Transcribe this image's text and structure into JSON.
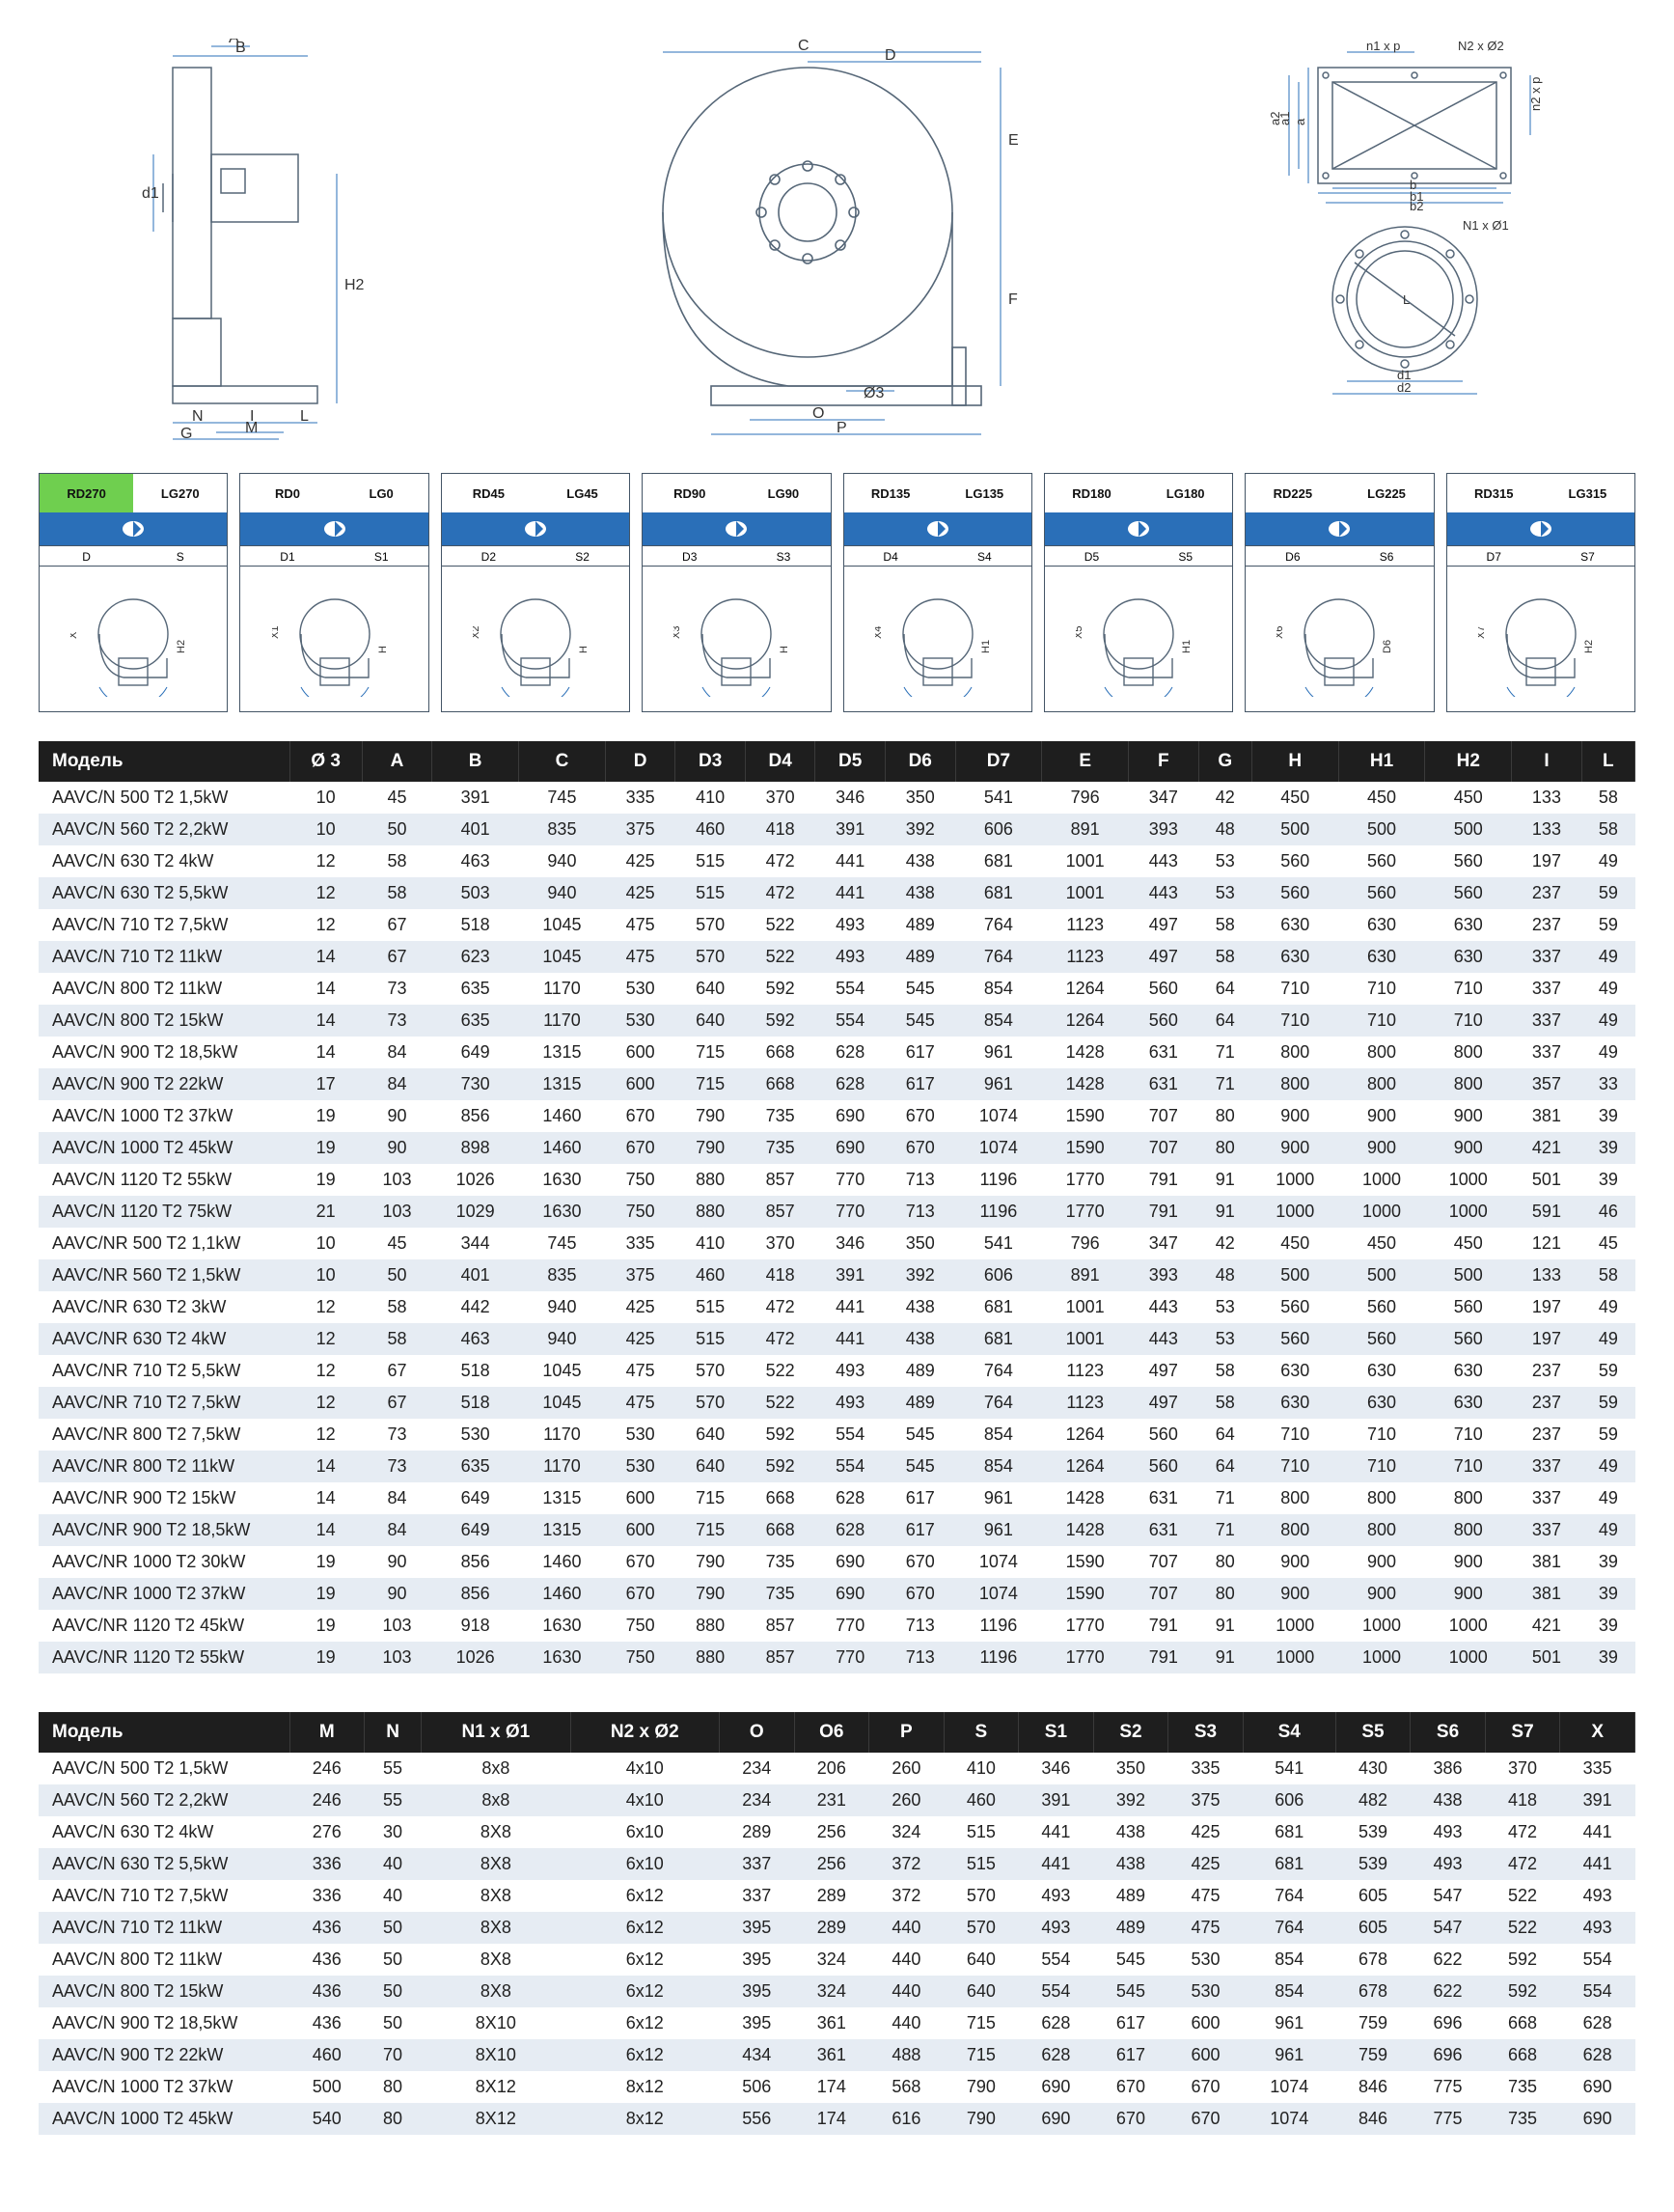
{
  "images": {
    "side_view_labels": [
      "A",
      "B",
      "d1",
      "H2",
      "N",
      "I",
      "L",
      "G",
      "M"
    ],
    "front_view_labels": [
      "C",
      "D",
      "E",
      "F",
      "O",
      "Ø3",
      "P"
    ],
    "flange_rect_labels": [
      "n1 x p",
      "N2 x Ø2",
      "a1",
      "a2",
      "a",
      "b",
      "b1",
      "b2",
      "n2 x p"
    ],
    "flange_round_labels": [
      "N1 x Ø1",
      "L",
      "d1",
      "d2"
    ]
  },
  "orientations": [
    {
      "rd": "RD270",
      "lg": "LG270",
      "dims": [
        "D",
        "S",
        "X",
        "H2"
      ],
      "active": true
    },
    {
      "rd": "RD0",
      "lg": "LG0",
      "dims": [
        "D1",
        "S1",
        "X1",
        "H"
      ]
    },
    {
      "rd": "RD45",
      "lg": "LG45",
      "dims": [
        "D2",
        "S2",
        "X2",
        "H"
      ]
    },
    {
      "rd": "RD90",
      "lg": "LG90",
      "dims": [
        "D3",
        "S3",
        "X3",
        "H"
      ]
    },
    {
      "rd": "RD135",
      "lg": "LG135",
      "dims": [
        "D4",
        "S4",
        "X4",
        "H1"
      ]
    },
    {
      "rd": "RD180",
      "lg": "LG180",
      "dims": [
        "D5",
        "S5",
        "X5",
        "H1"
      ]
    },
    {
      "rd": "RD225",
      "lg": "LG225",
      "dims": [
        "D6",
        "S6",
        "X6",
        "D6",
        "H1"
      ]
    },
    {
      "rd": "RD315",
      "lg": "LG315",
      "dims": [
        "D7",
        "S7",
        "X7",
        "H2"
      ]
    }
  ],
  "table1": {
    "header_label": "Модель",
    "columns": [
      "Ø 3",
      "A",
      "B",
      "C",
      "D",
      "D3",
      "D4",
      "D5",
      "D6",
      "D7",
      "E",
      "F",
      "G",
      "H",
      "H1",
      "H2",
      "I",
      "L"
    ],
    "rows": [
      [
        "AAVC/N 500 T2 1,5kW",
        10,
        45,
        391,
        745,
        335,
        410,
        370,
        346,
        350,
        541,
        796,
        347,
        42,
        450,
        450,
        450,
        133,
        58
      ],
      [
        "AAVC/N 560 T2 2,2kW",
        10,
        50,
        401,
        835,
        375,
        460,
        418,
        391,
        392,
        606,
        891,
        393,
        48,
        500,
        500,
        500,
        133,
        58
      ],
      [
        "AAVC/N 630 T2 4kW",
        12,
        58,
        463,
        940,
        425,
        515,
        472,
        441,
        438,
        681,
        1001,
        443,
        53,
        560,
        560,
        560,
        197,
        49
      ],
      [
        "AAVC/N 630 T2 5,5kW",
        12,
        58,
        503,
        940,
        425,
        515,
        472,
        441,
        438,
        681,
        1001,
        443,
        53,
        560,
        560,
        560,
        237,
        59
      ],
      [
        "AAVC/N 710 T2 7,5kW",
        12,
        67,
        518,
        1045,
        475,
        570,
        522,
        493,
        489,
        764,
        1123,
        497,
        58,
        630,
        630,
        630,
        237,
        59
      ],
      [
        "AAVC/N 710 T2 11kW",
        14,
        67,
        623,
        1045,
        475,
        570,
        522,
        493,
        489,
        764,
        1123,
        497,
        58,
        630,
        630,
        630,
        337,
        49
      ],
      [
        "AAVC/N 800 T2 11kW",
        14,
        73,
        635,
        1170,
        530,
        640,
        592,
        554,
        545,
        854,
        1264,
        560,
        64,
        710,
        710,
        710,
        337,
        49
      ],
      [
        "AAVC/N 800 T2 15kW",
        14,
        73,
        635,
        1170,
        530,
        640,
        592,
        554,
        545,
        854,
        1264,
        560,
        64,
        710,
        710,
        710,
        337,
        49
      ],
      [
        "AAVC/N 900 T2 18,5kW",
        14,
        84,
        649,
        1315,
        600,
        715,
        668,
        628,
        617,
        961,
        1428,
        631,
        71,
        800,
        800,
        800,
        337,
        49
      ],
      [
        "AAVC/N 900 T2 22kW",
        17,
        84,
        730,
        1315,
        600,
        715,
        668,
        628,
        617,
        961,
        1428,
        631,
        71,
        800,
        800,
        800,
        357,
        33
      ],
      [
        "AAVC/N 1000 T2 37kW",
        19,
        90,
        856,
        1460,
        670,
        790,
        735,
        690,
        670,
        1074,
        1590,
        707,
        80,
        900,
        900,
        900,
        381,
        39
      ],
      [
        "AAVC/N 1000 T2 45kW",
        19,
        90,
        898,
        1460,
        670,
        790,
        735,
        690,
        670,
        1074,
        1590,
        707,
        80,
        900,
        900,
        900,
        421,
        39
      ],
      [
        "AAVC/N 1120 T2 55kW",
        19,
        103,
        1026,
        1630,
        750,
        880,
        857,
        770,
        713,
        1196,
        1770,
        791,
        91,
        1000,
        1000,
        1000,
        501,
        39
      ],
      [
        "AAVC/N 1120 T2 75kW",
        21,
        103,
        1029,
        1630,
        750,
        880,
        857,
        770,
        713,
        1196,
        1770,
        791,
        91,
        1000,
        1000,
        1000,
        591,
        46
      ],
      [
        "AAVC/NR 500 T2 1,1kW",
        10,
        45,
        344,
        745,
        335,
        410,
        370,
        346,
        350,
        541,
        796,
        347,
        42,
        450,
        450,
        450,
        121,
        45
      ],
      [
        "AAVC/NR 560 T2 1,5kW",
        10,
        50,
        401,
        835,
        375,
        460,
        418,
        391,
        392,
        606,
        891,
        393,
        48,
        500,
        500,
        500,
        133,
        58
      ],
      [
        "AAVC/NR 630 T2 3kW",
        12,
        58,
        442,
        940,
        425,
        515,
        472,
        441,
        438,
        681,
        1001,
        443,
        53,
        560,
        560,
        560,
        197,
        49
      ],
      [
        "AAVC/NR 630 T2 4kW",
        12,
        58,
        463,
        940,
        425,
        515,
        472,
        441,
        438,
        681,
        1001,
        443,
        53,
        560,
        560,
        560,
        197,
        49
      ],
      [
        "AAVC/NR 710 T2 5,5kW",
        12,
        67,
        518,
        1045,
        475,
        570,
        522,
        493,
        489,
        764,
        1123,
        497,
        58,
        630,
        630,
        630,
        237,
        59
      ],
      [
        "AAVC/NR 710 T2 7,5kW",
        12,
        67,
        518,
        1045,
        475,
        570,
        522,
        493,
        489,
        764,
        1123,
        497,
        58,
        630,
        630,
        630,
        237,
        59
      ],
      [
        "AAVC/NR 800 T2 7,5kW",
        12,
        73,
        530,
        1170,
        530,
        640,
        592,
        554,
        545,
        854,
        1264,
        560,
        64,
        710,
        710,
        710,
        237,
        59
      ],
      [
        "AAVC/NR 800 T2 11kW",
        14,
        73,
        635,
        1170,
        530,
        640,
        592,
        554,
        545,
        854,
        1264,
        560,
        64,
        710,
        710,
        710,
        337,
        49
      ],
      [
        "AAVC/NR 900 T2 15kW",
        14,
        84,
        649,
        1315,
        600,
        715,
        668,
        628,
        617,
        961,
        1428,
        631,
        71,
        800,
        800,
        800,
        337,
        49
      ],
      [
        "AAVC/NR 900 T2 18,5kW",
        14,
        84,
        649,
        1315,
        600,
        715,
        668,
        628,
        617,
        961,
        1428,
        631,
        71,
        800,
        800,
        800,
        337,
        49
      ],
      [
        "AAVC/NR 1000 T2 30kW",
        19,
        90,
        856,
        1460,
        670,
        790,
        735,
        690,
        670,
        1074,
        1590,
        707,
        80,
        900,
        900,
        900,
        381,
        39
      ],
      [
        "AAVC/NR 1000 T2 37kW",
        19,
        90,
        856,
        1460,
        670,
        790,
        735,
        690,
        670,
        1074,
        1590,
        707,
        80,
        900,
        900,
        900,
        381,
        39
      ],
      [
        "AAVC/NR 1120 T2 45kW",
        19,
        103,
        918,
        1630,
        750,
        880,
        857,
        770,
        713,
        1196,
        1770,
        791,
        91,
        1000,
        1000,
        1000,
        421,
        39
      ],
      [
        "AAVC/NR 1120 T2 55kW",
        19,
        103,
        1026,
        1630,
        750,
        880,
        857,
        770,
        713,
        1196,
        1770,
        791,
        91,
        1000,
        1000,
        1000,
        501,
        39
      ]
    ]
  },
  "table2": {
    "header_label": "Модель",
    "columns": [
      "M",
      "N",
      "N1 x Ø1",
      "N2 x Ø2",
      "O",
      "O6",
      "P",
      "S",
      "S1",
      "S2",
      "S3",
      "S4",
      "S5",
      "S6",
      "S7",
      "X"
    ],
    "rows": [
      [
        "AAVC/N 500 T2 1,5kW",
        246,
        55,
        "8x8",
        "4x10",
        234,
        206,
        260,
        410,
        346,
        350,
        335,
        541,
        430,
        386,
        370,
        335
      ],
      [
        "AAVC/N 560 T2 2,2kW",
        246,
        55,
        "8x8",
        "4x10",
        234,
        231,
        260,
        460,
        391,
        392,
        375,
        606,
        482,
        438,
        418,
        391
      ],
      [
        "AAVC/N 630 T2 4kW",
        276,
        30,
        "8X8",
        "6x10",
        289,
        256,
        324,
        515,
        441,
        438,
        425,
        681,
        539,
        493,
        472,
        441
      ],
      [
        "AAVC/N 630 T2 5,5kW",
        336,
        40,
        "8X8",
        "6x10",
        337,
        256,
        372,
        515,
        441,
        438,
        425,
        681,
        539,
        493,
        472,
        441
      ],
      [
        "AAVC/N 710 T2 7,5kW",
        336,
        40,
        "8X8",
        "6x12",
        337,
        289,
        372,
        570,
        493,
        489,
        475,
        764,
        605,
        547,
        522,
        493
      ],
      [
        "AAVC/N 710 T2 11kW",
        436,
        50,
        "8X8",
        "6x12",
        395,
        289,
        440,
        570,
        493,
        489,
        475,
        764,
        605,
        547,
        522,
        493
      ],
      [
        "AAVC/N 800 T2 11kW",
        436,
        50,
        "8X8",
        "6x12",
        395,
        324,
        440,
        640,
        554,
        545,
        530,
        854,
        678,
        622,
        592,
        554
      ],
      [
        "AAVC/N 800 T2 15kW",
        436,
        50,
        "8X8",
        "6x12",
        395,
        324,
        440,
        640,
        554,
        545,
        530,
        854,
        678,
        622,
        592,
        554
      ],
      [
        "AAVC/N 900 T2 18,5kW",
        436,
        50,
        "8X10",
        "6x12",
        395,
        361,
        440,
        715,
        628,
        617,
        600,
        961,
        759,
        696,
        668,
        628
      ],
      [
        "AAVC/N 900 T2 22kW",
        460,
        70,
        "8X10",
        "6x12",
        434,
        361,
        488,
        715,
        628,
        617,
        600,
        961,
        759,
        696,
        668,
        628
      ],
      [
        "AAVC/N 1000 T2 37kW",
        500,
        80,
        "8X12",
        "8x12",
        506,
        174,
        568,
        790,
        690,
        670,
        670,
        1074,
        846,
        775,
        735,
        690
      ],
      [
        "AAVC/N 1000 T2 45kW",
        540,
        80,
        "8X12",
        "8x12",
        556,
        174,
        616,
        790,
        690,
        670,
        670,
        1074,
        846,
        775,
        735,
        690
      ]
    ]
  },
  "colors": {
    "header_bg": "#1e1e1e",
    "header_fg": "#ffffff",
    "row_alt_bg": "#e6ecf3",
    "blue": "#2a6fb8",
    "green": "#6fcf4f",
    "line": "#556677"
  }
}
